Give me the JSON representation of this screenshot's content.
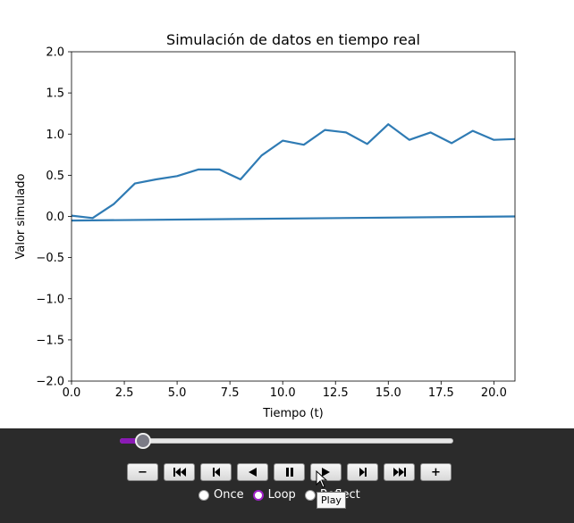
{
  "chart_data": {
    "type": "line",
    "title": "Simulación de datos en tiempo real",
    "xlabel": "Tiempo (t)",
    "ylabel": "Valor simulado",
    "xlim": [
      0,
      21
    ],
    "ylim": [
      -2.0,
      2.0
    ],
    "x_ticks": [
      "0.0",
      "2.5",
      "5.0",
      "7.5",
      "10.0",
      "12.5",
      "15.0",
      "17.5",
      "20.0"
    ],
    "x_tick_values": [
      0,
      2.5,
      5,
      7.5,
      10,
      12.5,
      15,
      17.5,
      20
    ],
    "y_ticks": [
      "−2.0",
      "−1.5",
      "−1.0",
      "−0.5",
      "0.0",
      "0.5",
      "1.0",
      "1.5",
      "2.0"
    ],
    "y_tick_values": [
      -2.0,
      -1.5,
      -1.0,
      -0.5,
      0.0,
      0.5,
      1.0,
      1.5,
      2.0
    ],
    "grid": false,
    "color": "#2f7bb4",
    "series": [
      {
        "x": [
          0,
          1,
          2,
          3,
          4,
          5,
          6,
          7,
          8,
          9,
          10,
          11,
          12,
          13,
          14,
          15,
          16,
          17,
          18,
          19,
          20,
          21
        ],
        "values": [
          0.01,
          -0.02,
          0.15,
          0.4,
          0.45,
          0.49,
          0.57,
          0.57,
          0.45,
          0.74,
          0.92,
          0.87,
          1.05,
          1.02,
          0.88,
          1.12,
          0.93,
          1.02,
          0.89,
          1.04,
          0.93,
          0.94
        ]
      },
      {
        "x": [
          0,
          21
        ],
        "values": [
          -0.05,
          0.0
        ]
      }
    ]
  },
  "controls": {
    "slider": {
      "value": 0.07,
      "fill_color": "#8a1ab5"
    },
    "buttons": [
      {
        "name": "decrease-speed",
        "icon": "minus-icon",
        "glyph": "−"
      },
      {
        "name": "first-frame",
        "icon": "skip-to-start-icon",
        "glyph": "⏮"
      },
      {
        "name": "previous-frame",
        "icon": "step-back-icon",
        "glyph": ""
      },
      {
        "name": "play-reverse",
        "icon": "play-reverse-icon",
        "glyph": ""
      },
      {
        "name": "pause",
        "icon": "pause-icon",
        "glyph": ""
      },
      {
        "name": "play",
        "icon": "play-icon",
        "glyph": ""
      },
      {
        "name": "next-frame",
        "icon": "step-forward-icon",
        "glyph": ""
      },
      {
        "name": "last-frame",
        "icon": "skip-to-end-icon",
        "glyph": "⏭"
      },
      {
        "name": "increase-speed",
        "icon": "plus-icon",
        "glyph": "+"
      }
    ],
    "modes": [
      {
        "label": "Once",
        "checked": false
      },
      {
        "label": "Loop",
        "checked": true
      },
      {
        "label": "Reflect",
        "checked": false
      }
    ],
    "tooltip": "Play"
  }
}
